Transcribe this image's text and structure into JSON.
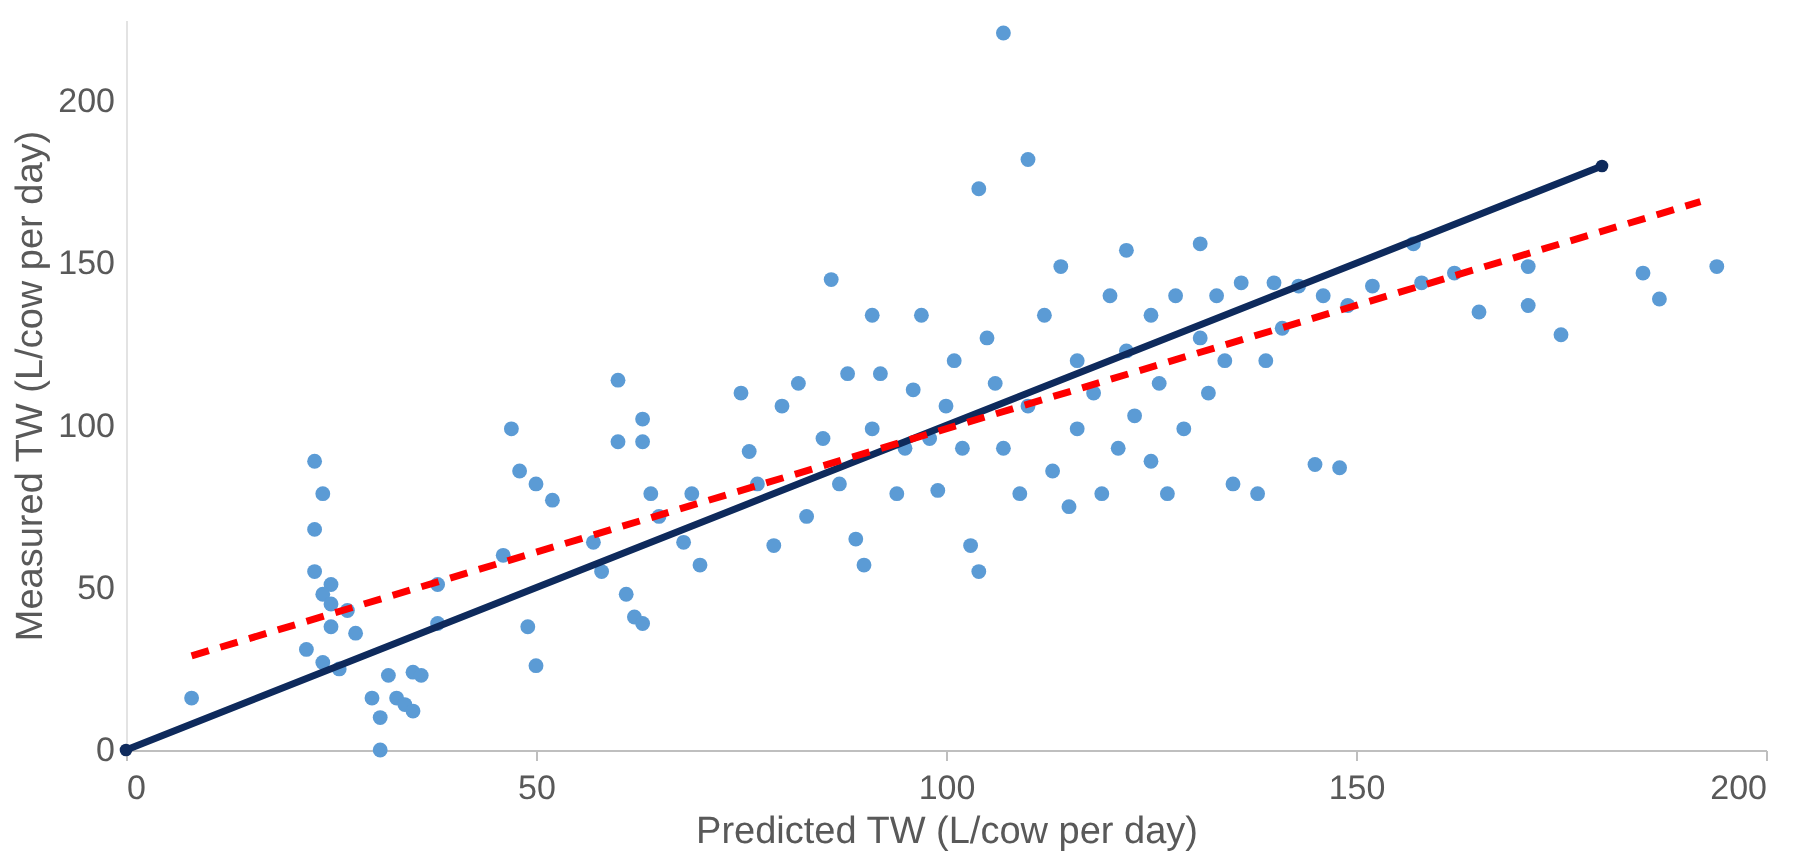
{
  "chart_data": {
    "type": "scatter",
    "xlabel": "Predicted TW (L/cow per day)",
    "ylabel": "Measured TW (L/cow per day)",
    "xlim": [
      0,
      200
    ],
    "ylim": [
      0,
      225
    ],
    "xticks": [
      0,
      50,
      100,
      150,
      200
    ],
    "yticks": [
      0,
      50,
      100,
      150,
      200
    ],
    "grid": false,
    "series": [
      {
        "type": "scatter",
        "marker": "circle",
        "color": "#5b9bd5",
        "x": [
          8,
          23,
          24,
          23,
          23,
          25,
          24,
          25,
          22,
          24,
          26,
          25,
          28,
          27,
          31,
          30,
          31,
          33,
          34,
          35,
          32,
          35,
          36,
          38,
          38,
          46,
          47,
          48,
          50,
          49,
          50,
          52,
          57,
          58,
          60,
          61,
          62,
          63,
          63,
          63,
          64,
          65,
          60,
          68,
          70,
          69,
          75,
          76,
          77,
          79,
          80,
          82,
          83,
          85,
          86,
          87,
          88,
          89,
          90,
          91,
          91,
          92,
          94,
          95,
          96,
          97,
          98,
          99,
          100,
          101,
          102,
          103,
          104,
          104,
          105,
          106,
          107,
          107,
          109,
          110,
          110,
          112,
          113,
          114,
          115,
          116,
          116,
          118,
          119,
          120,
          121,
          122,
          122,
          123,
          125,
          125,
          126,
          127,
          128,
          129,
          131,
          131,
          132,
          133,
          134,
          135,
          136,
          138,
          139,
          140,
          141,
          143,
          145,
          146,
          148,
          149,
          152,
          157,
          158,
          162,
          165,
          171,
          171,
          175,
          185,
          187,
          194
        ],
        "values": [
          16,
          89,
          79,
          68,
          55,
          51,
          48,
          45,
          31,
          27,
          25,
          38,
          36,
          43,
          0,
          16,
          10,
          16,
          14,
          12,
          23,
          24,
          23,
          51,
          39,
          60,
          99,
          86,
          82,
          38,
          26,
          77,
          64,
          55,
          114,
          48,
          41,
          39,
          102,
          95,
          79,
          72,
          95,
          64,
          57,
          79,
          110,
          92,
          82,
          63,
          106,
          113,
          72,
          96,
          145,
          82,
          116,
          65,
          57,
          99,
          134,
          116,
          79,
          93,
          111,
          134,
          96,
          80,
          106,
          120,
          93,
          63,
          55,
          173,
          127,
          113,
          221,
          93,
          79,
          182,
          106,
          134,
          86,
          149,
          75,
          120,
          99,
          110,
          79,
          140,
          93,
          154,
          123,
          103,
          134,
          89,
          113,
          79,
          140,
          99,
          127,
          156,
          110,
          140,
          120,
          82,
          144,
          79,
          120,
          144,
          130,
          143,
          88,
          140,
          87,
          137,
          143,
          156,
          144,
          147,
          135,
          149,
          137,
          128,
          147,
          139,
          149
        ]
      },
      {
        "type": "line",
        "marker": "circle",
        "line_style": "solid",
        "color": "#0e2a5c",
        "x": [
          0,
          180
        ],
        "values": [
          0,
          180
        ]
      },
      {
        "type": "line",
        "marker": "none",
        "line_style": "dashed",
        "color": "#ff0000",
        "x": [
          8,
          192
        ],
        "values": [
          29,
          169
        ]
      }
    ]
  }
}
